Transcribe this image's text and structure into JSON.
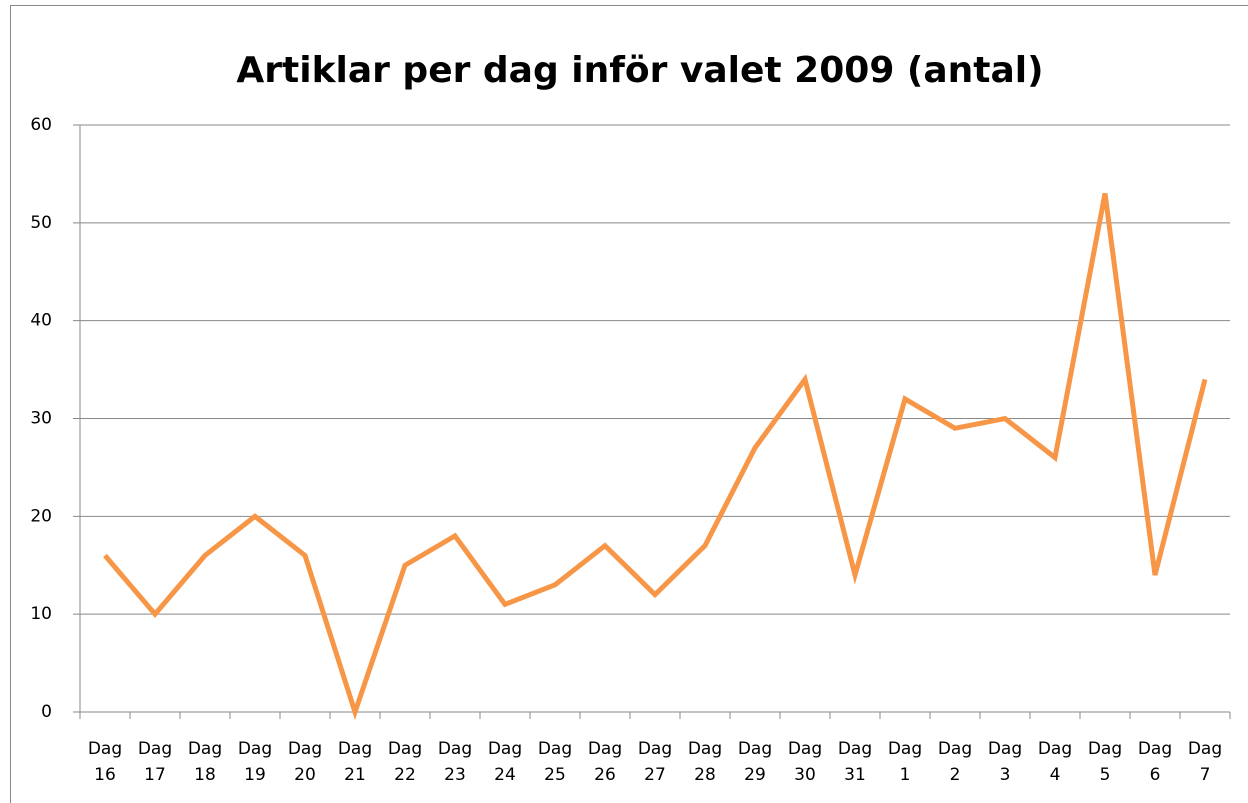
{
  "chart_data": {
    "type": "line",
    "title": "Artiklar per dag inför valet 2009 (antal)",
    "categories": [
      "Dag 16",
      "Dag 17",
      "Dag 18",
      "Dag 19",
      "Dag 20",
      "Dag 21",
      "Dag 22",
      "Dag 23",
      "Dag 24",
      "Dag 25",
      "Dag 26",
      "Dag 27",
      "Dag 28",
      "Dag 29",
      "Dag 30",
      "Dag 31",
      "Dag 1",
      "Dag 2",
      "Dag 3",
      "Dag 4",
      "Dag 5",
      "Dag 6",
      "Dag 7"
    ],
    "values": [
      16,
      10,
      16,
      20,
      16,
      0,
      15,
      18,
      11,
      13,
      17,
      12,
      17,
      27,
      34,
      14,
      32,
      29,
      30,
      26,
      53,
      14,
      34
    ],
    "color": "#f79646",
    "ylim": [
      0,
      60
    ],
    "yticks": [
      0,
      10,
      20,
      30,
      40,
      50,
      60
    ],
    "grid": true
  }
}
